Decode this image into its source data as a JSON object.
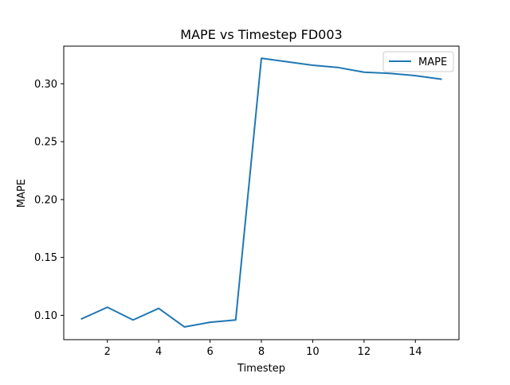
{
  "chart_data": {
    "type": "line",
    "title": "MAPE vs Timestep FD003",
    "xlabel": "Timestep",
    "ylabel": "MAPE",
    "xlim": [
      0.3,
      15.7
    ],
    "ylim": [
      0.079,
      0.3325
    ],
    "xticks": [
      2,
      4,
      6,
      8,
      10,
      12,
      14
    ],
    "xtick_labels": [
      "2",
      "4",
      "6",
      "8",
      "10",
      "12",
      "14"
    ],
    "yticks": [
      0.1,
      0.15,
      0.2,
      0.25,
      0.3
    ],
    "ytick_labels": [
      "0.10",
      "0.15",
      "0.20",
      "0.25",
      "0.30"
    ],
    "grid": false,
    "legend_position": "top-right",
    "series": [
      {
        "name": "MAPE",
        "color": "#1f77b4",
        "x": [
          1,
          2,
          3,
          4,
          5,
          6,
          7,
          8,
          9,
          10,
          11,
          12,
          13,
          14,
          15
        ],
        "y": [
          0.097,
          0.107,
          0.096,
          0.106,
          0.09,
          0.094,
          0.096,
          0.322,
          0.319,
          0.316,
          0.314,
          0.31,
          0.309,
          0.307,
          0.304
        ]
      }
    ]
  }
}
